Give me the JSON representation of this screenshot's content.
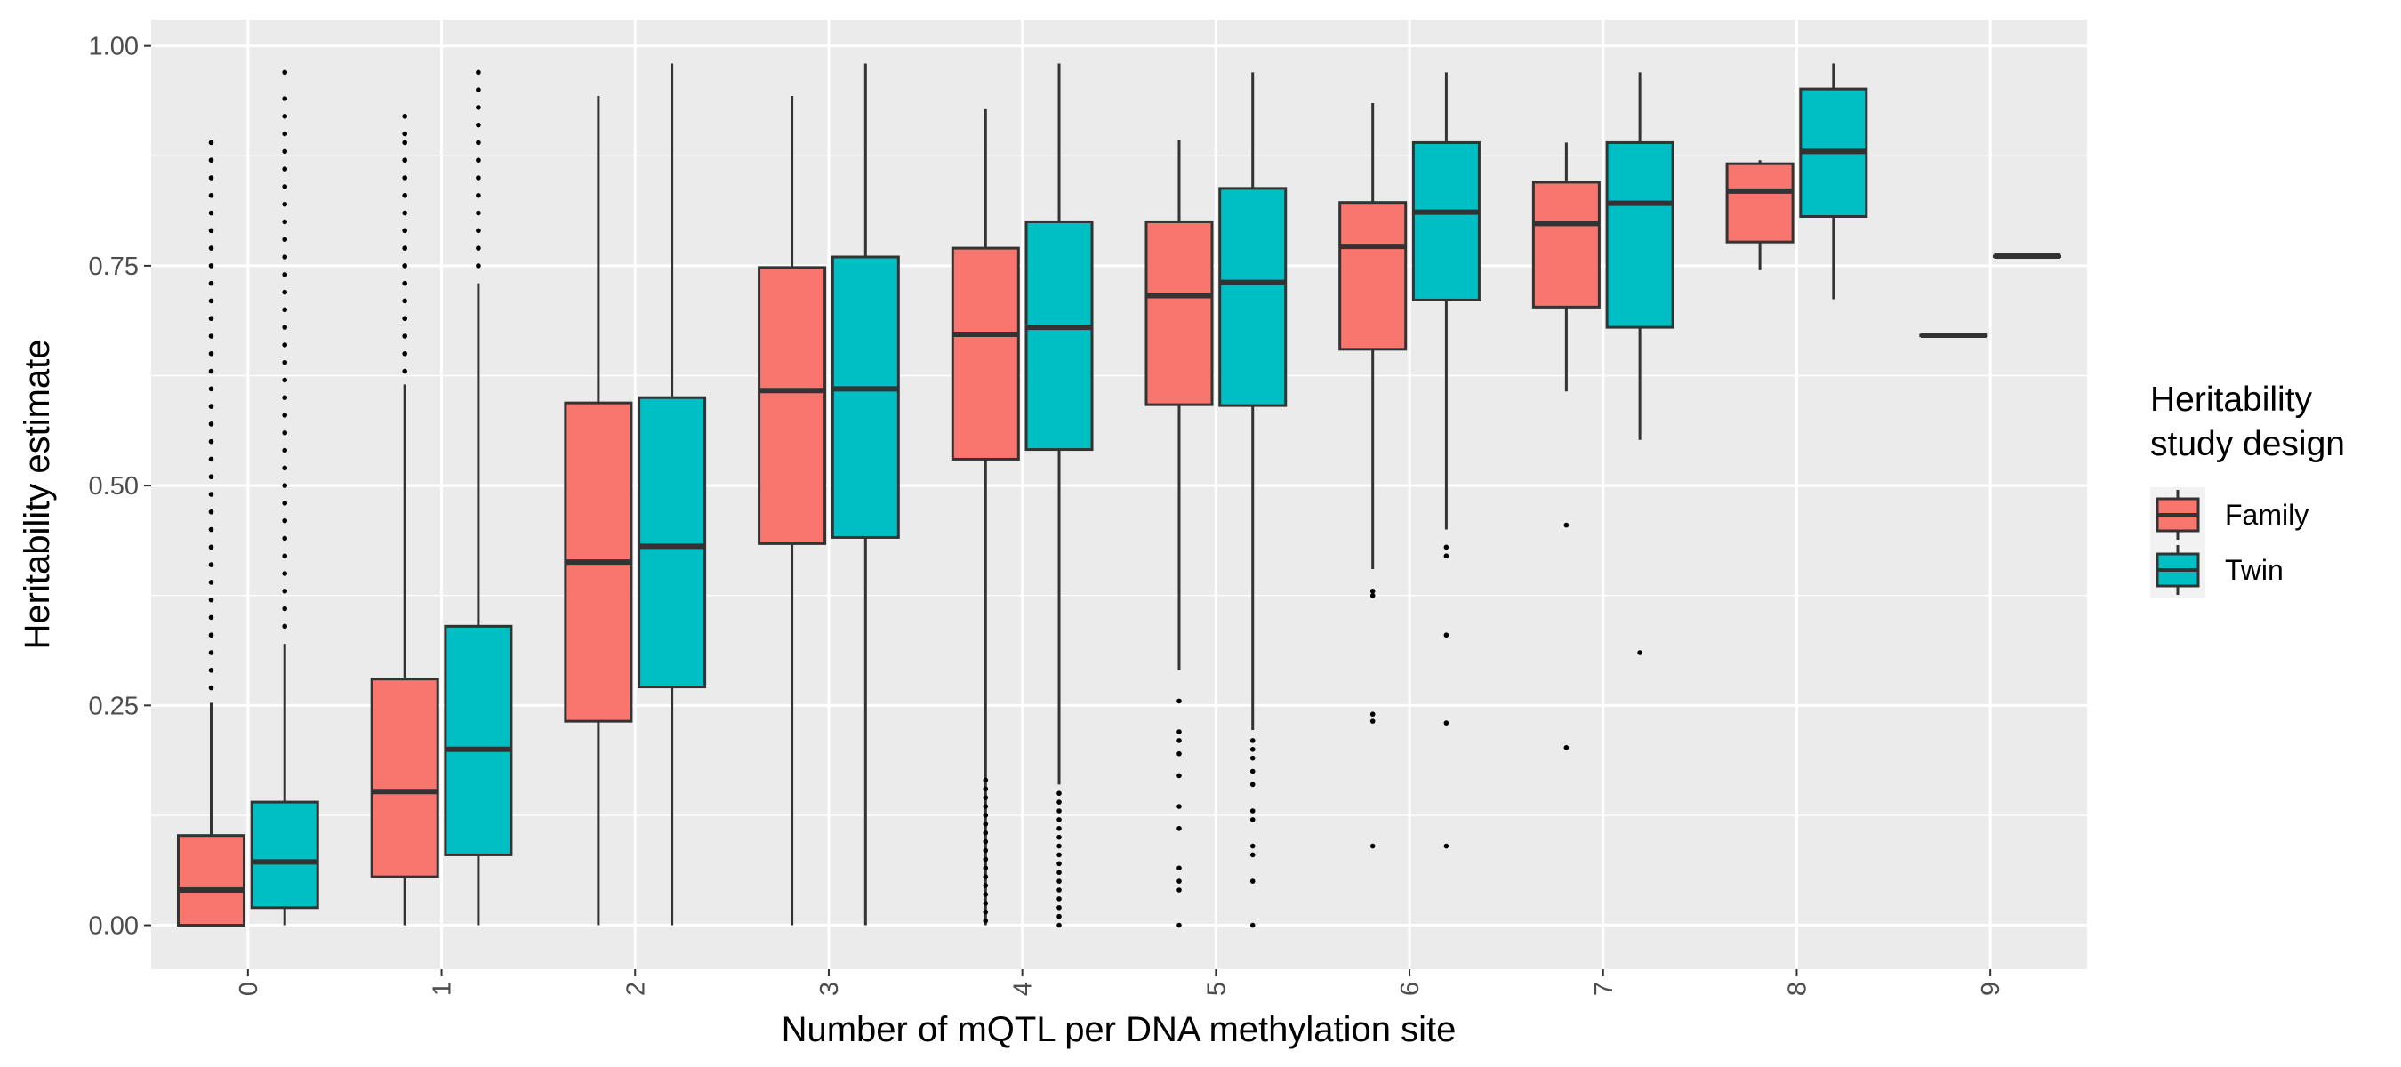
{
  "chart_data": {
    "type": "boxplot",
    "title": "",
    "xlabel": "Number of mQTL per DNA methylation site",
    "ylabel": "Heritability estimate",
    "categories": [
      "0",
      "1",
      "2",
      "3",
      "4",
      "5",
      "6",
      "7",
      "8",
      "9"
    ],
    "ylim": [
      -0.05,
      1.03
    ],
    "yticks": [
      {
        "value": 0.0,
        "label": "0.00"
      },
      {
        "value": 0.25,
        "label": "0.25"
      },
      {
        "value": 0.5,
        "label": "0.50"
      },
      {
        "value": 0.75,
        "label": "0.75"
      },
      {
        "value": 1.0,
        "label": "1.00"
      }
    ],
    "grid": true,
    "legend": {
      "title_lines": [
        "Heritability",
        "study design"
      ],
      "position": "right"
    },
    "series": [
      {
        "name": "Family",
        "color": "#F8766D",
        "boxes": [
          {
            "category": "0",
            "min": 0.0,
            "q1": 0.0,
            "median": 0.04,
            "q3": 0.102,
            "max": 0.253,
            "outliers": [
              0.27,
              0.29,
              0.31,
              0.33,
              0.35,
              0.37,
              0.39,
              0.41,
              0.43,
              0.45,
              0.47,
              0.49,
              0.51,
              0.53,
              0.55,
              0.57,
              0.59,
              0.61,
              0.63,
              0.65,
              0.67,
              0.69,
              0.71,
              0.73,
              0.75,
              0.77,
              0.79,
              0.81,
              0.83,
              0.85,
              0.87,
              0.89
            ]
          },
          {
            "category": "1",
            "min": 0.0,
            "q1": 0.055,
            "median": 0.152,
            "q3": 0.28,
            "max": 0.615,
            "outliers": [
              0.63,
              0.65,
              0.67,
              0.69,
              0.71,
              0.73,
              0.75,
              0.77,
              0.79,
              0.81,
              0.83,
              0.85,
              0.87,
              0.89,
              0.9,
              0.92
            ]
          },
          {
            "category": "2",
            "min": 0.0,
            "q1": 0.232,
            "median": 0.413,
            "q3": 0.594,
            "max": 0.943,
            "outliers": []
          },
          {
            "category": "3",
            "min": 0.0,
            "q1": 0.434,
            "median": 0.608,
            "q3": 0.748,
            "max": 0.943,
            "outliers": []
          },
          {
            "category": "4",
            "min": 0.0,
            "q1": 0.53,
            "median": 0.672,
            "q3": 0.77,
            "max": 0.928,
            "outliers": [
              0.005,
              0.015,
              0.025,
              0.035,
              0.045,
              0.055,
              0.065,
              0.075,
              0.085,
              0.095,
              0.105,
              0.115,
              0.125,
              0.135,
              0.145,
              0.155,
              0.165
            ]
          },
          {
            "category": "5",
            "min": 0.29,
            "q1": 0.592,
            "median": 0.716,
            "q3": 0.8,
            "max": 0.893,
            "outliers": [
              0.0,
              0.04,
              0.05,
              0.065,
              0.11,
              0.135,
              0.17,
              0.195,
              0.21,
              0.22,
              0.255
            ]
          },
          {
            "category": "6",
            "min": 0.405,
            "q1": 0.655,
            "median": 0.772,
            "q3": 0.822,
            "max": 0.935,
            "outliers": [
              0.09,
              0.232,
              0.24,
              0.375,
              0.38
            ]
          },
          {
            "category": "7",
            "min": 0.607,
            "q1": 0.703,
            "median": 0.798,
            "q3": 0.845,
            "max": 0.89,
            "outliers": [
              0.202,
              0.455
            ]
          },
          {
            "category": "8",
            "min": 0.745,
            "q1": 0.777,
            "median": 0.835,
            "q3": 0.866,
            "max": 0.87,
            "outliers": []
          },
          {
            "category": "9",
            "min": 0.671,
            "q1": 0.671,
            "median": 0.671,
            "q3": 0.671,
            "max": 0.671,
            "outliers": []
          }
        ]
      },
      {
        "name": "Twin",
        "color": "#00BFC4",
        "boxes": [
          {
            "category": "0",
            "min": 0.0,
            "q1": 0.02,
            "median": 0.072,
            "q3": 0.14,
            "max": 0.32,
            "outliers": [
              0.34,
              0.36,
              0.38,
              0.4,
              0.42,
              0.44,
              0.46,
              0.48,
              0.5,
              0.52,
              0.54,
              0.56,
              0.58,
              0.6,
              0.62,
              0.64,
              0.66,
              0.68,
              0.7,
              0.72,
              0.74,
              0.76,
              0.78,
              0.8,
              0.82,
              0.84,
              0.86,
              0.88,
              0.9,
              0.92,
              0.94,
              0.97
            ]
          },
          {
            "category": "1",
            "min": 0.0,
            "q1": 0.08,
            "median": 0.2,
            "q3": 0.34,
            "max": 0.73,
            "outliers": [
              0.75,
              0.77,
              0.79,
              0.81,
              0.83,
              0.85,
              0.87,
              0.89,
              0.91,
              0.93,
              0.95,
              0.97
            ]
          },
          {
            "category": "2",
            "min": 0.0,
            "q1": 0.271,
            "median": 0.431,
            "q3": 0.6,
            "max": 0.98,
            "outliers": []
          },
          {
            "category": "3",
            "min": 0.0,
            "q1": 0.441,
            "median": 0.61,
            "q3": 0.76,
            "max": 0.98,
            "outliers": []
          },
          {
            "category": "4",
            "min": 0.16,
            "q1": 0.541,
            "median": 0.68,
            "q3": 0.8,
            "max": 0.98,
            "outliers": [
              0.0,
              0.01,
              0.02,
              0.03,
              0.04,
              0.05,
              0.06,
              0.07,
              0.08,
              0.09,
              0.1,
              0.11,
              0.12,
              0.13,
              0.14,
              0.15
            ]
          },
          {
            "category": "5",
            "min": 0.222,
            "q1": 0.591,
            "median": 0.731,
            "q3": 0.838,
            "max": 0.97,
            "outliers": [
              0.0,
              0.05,
              0.08,
              0.09,
              0.12,
              0.13,
              0.16,
              0.175,
              0.19,
              0.2,
              0.21
            ]
          },
          {
            "category": "6",
            "min": 0.45,
            "q1": 0.711,
            "median": 0.811,
            "q3": 0.89,
            "max": 0.97,
            "outliers": [
              0.09,
              0.23,
              0.33,
              0.42,
              0.43
            ]
          },
          {
            "category": "7",
            "min": 0.552,
            "q1": 0.68,
            "median": 0.821,
            "q3": 0.89,
            "max": 0.97,
            "outliers": [
              0.31
            ]
          },
          {
            "category": "8",
            "min": 0.712,
            "q1": 0.806,
            "median": 0.88,
            "q3": 0.951,
            "max": 0.98,
            "outliers": []
          },
          {
            "category": "9",
            "min": 0.761,
            "q1": 0.761,
            "median": 0.761,
            "q3": 0.761,
            "max": 0.761,
            "outliers": []
          }
        ]
      }
    ]
  }
}
